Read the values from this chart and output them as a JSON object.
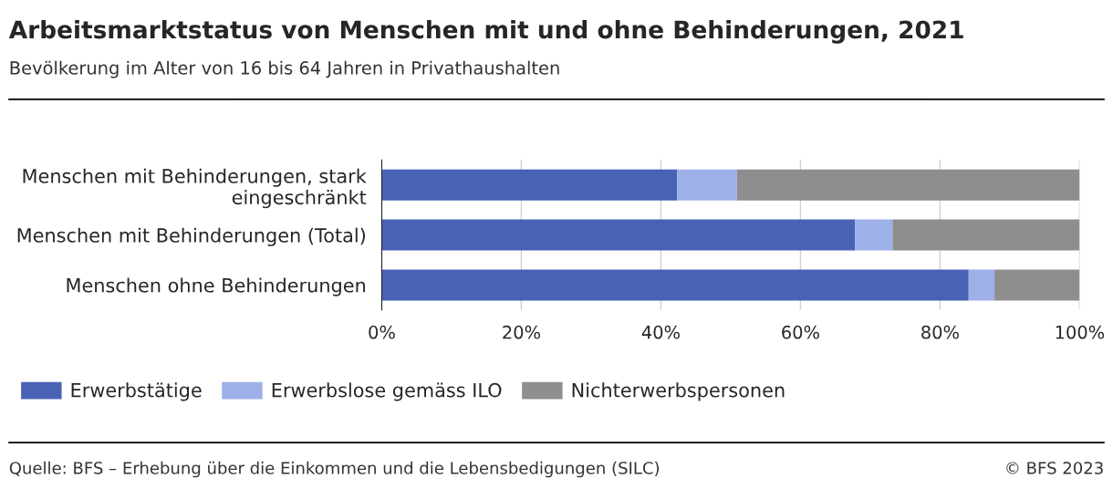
{
  "chart_data": {
    "type": "bar",
    "orientation": "horizontal",
    "stacked": true,
    "title": "Arbeitsmarktstatus von Menschen mit und ohne Behinderungen, 2021",
    "subtitle": "Bevölkerung im Alter von 16 bis 64 Jahren in Privathaushalten",
    "categories": [
      "Menschen mit Behinderungen, stark\neingeschränkt",
      "Menschen mit Behinderungen (Total)",
      "Menschen ohne Behinderungen"
    ],
    "series": [
      {
        "name": "Erwerbstätige",
        "color": "#4a62b4",
        "values": [
          42.3,
          67.8,
          84.1
        ]
      },
      {
        "name": "Erwerbslose gemäss ILO",
        "color": "#9eb0e8",
        "values": [
          8.6,
          5.4,
          3.7
        ]
      },
      {
        "name": "Nichterwerbspersonen",
        "color": "#8e8e8e",
        "values": [
          49.1,
          26.8,
          12.2
        ]
      }
    ],
    "xlim": [
      0,
      100
    ],
    "xticks": [
      {
        "value": 0,
        "label": "0%"
      },
      {
        "value": 20,
        "label": "20%"
      },
      {
        "value": 40,
        "label": "40%"
      },
      {
        "value": 60,
        "label": "60%"
      },
      {
        "value": 80,
        "label": "80%"
      },
      {
        "value": 100,
        "label": "100%"
      }
    ],
    "grid": "x",
    "legend": "bottom",
    "annotations": [
      "Quelle: BFS – Erhebung über die Einkommen und die Lebensbedigungen (SILC)",
      "© BFS 2023"
    ]
  }
}
